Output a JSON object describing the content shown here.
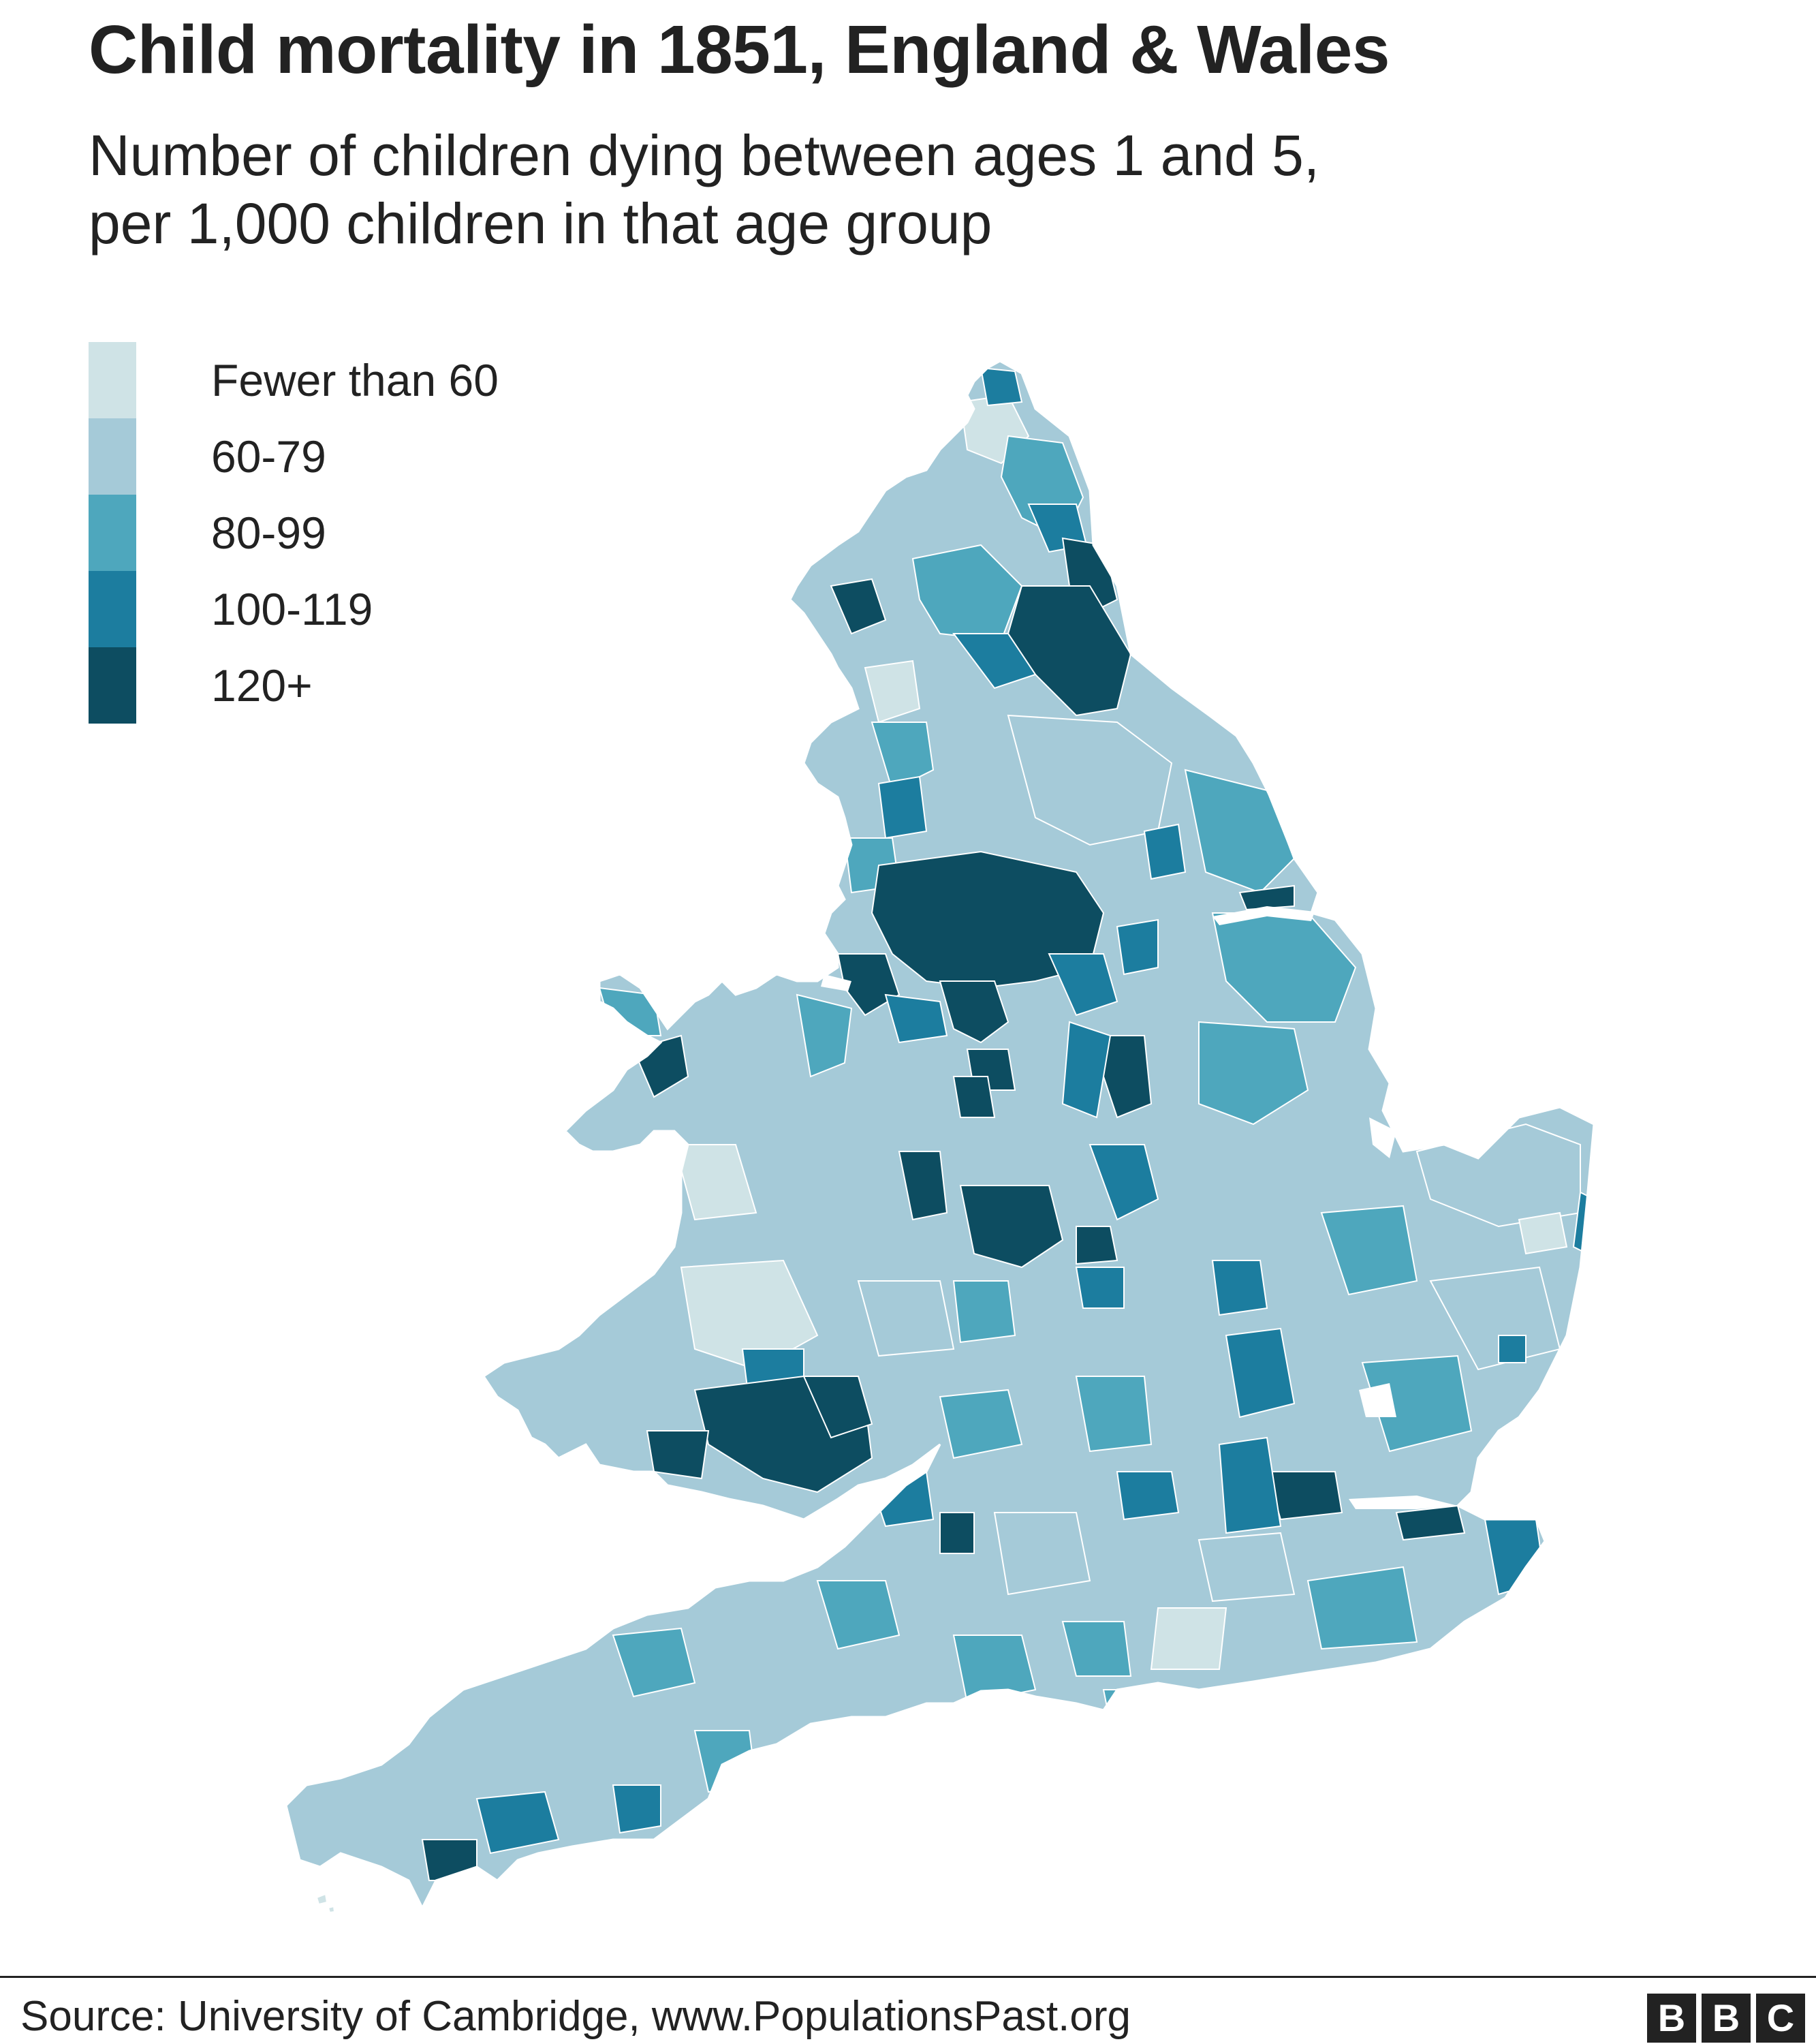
{
  "header": {
    "title": "Child mortality in 1851, England & Wales",
    "subtitle_lines": [
      "Number of children dying between ages 1 and 5,",
      "per 1,000 children in that age group"
    ]
  },
  "legend": {
    "items": [
      {
        "label": "Fewer than 60",
        "color": "#cfe3e6"
      },
      {
        "label": "60-79",
        "color": "#a5cad8"
      },
      {
        "label": "80-99",
        "color": "#4ea7bd"
      },
      {
        "label": "100-119",
        "color": "#1c7d9f"
      },
      {
        "label": "120+",
        "color": "#0d4d61"
      }
    ]
  },
  "map": {
    "region": "England & Wales",
    "boundary_color": "#ffffff"
  },
  "footer": {
    "source": "Source: University of Cambridge, www.PopulationsPast.org",
    "logo_letters": [
      "B",
      "B",
      "C"
    ]
  }
}
